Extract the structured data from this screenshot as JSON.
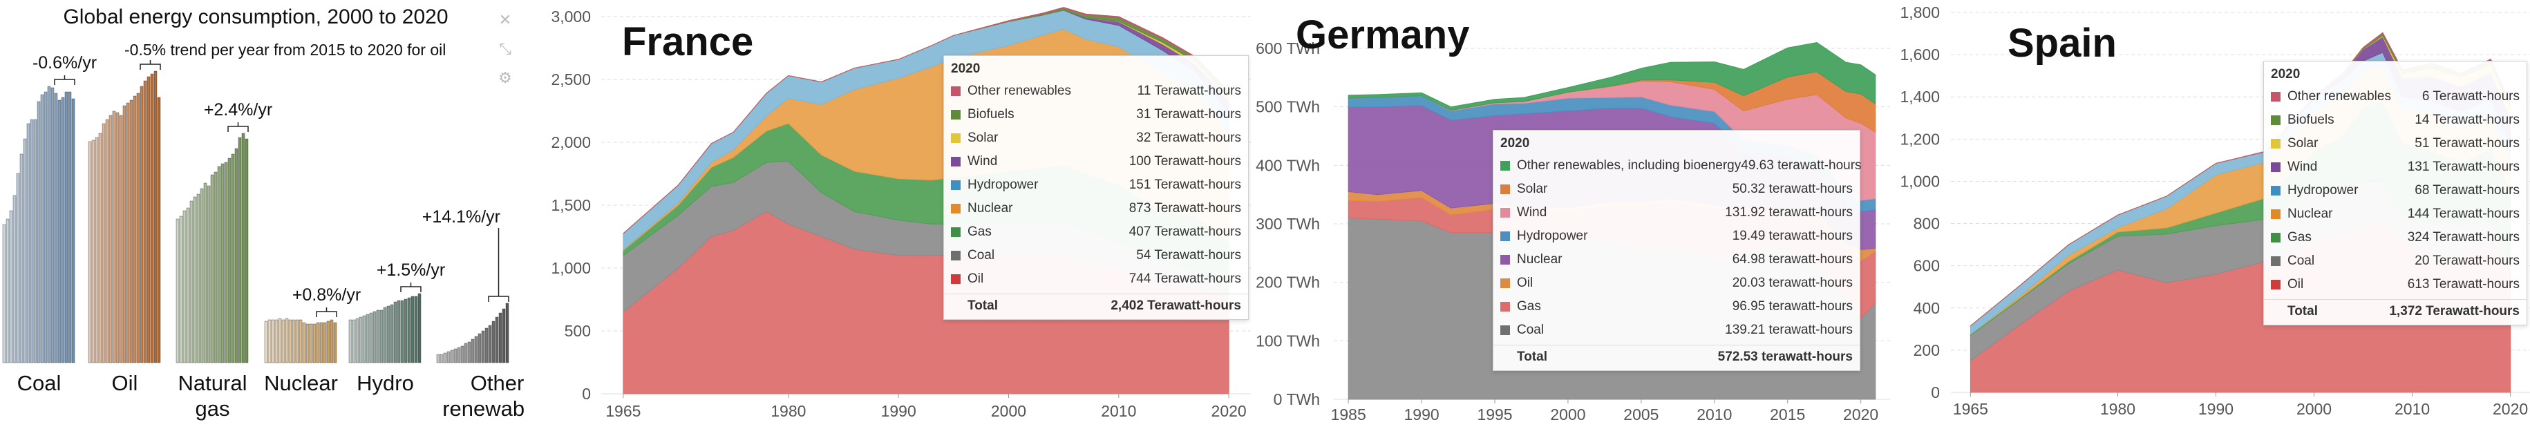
{
  "global": {
    "title": "Global energy consumption, 2000 to 2020",
    "icons": [
      "close-icon",
      "shrink-icon",
      "settings-icon"
    ],
    "categories": [
      {
        "name": "Coal",
        "label_lines": [
          "Coal"
        ],
        "color": "#6f8fb0",
        "trend": "-0.6%/yr",
        "values": [
          100,
          104,
          110,
          121,
          137,
          151,
          162,
          173,
          176,
          176,
          189,
          194,
          196,
          200,
          199,
          195,
          190,
          192,
          196,
          196,
          191
        ]
      },
      {
        "name": "Oil",
        "label_lines": [
          "Oil"
        ],
        "color": "#b5652a",
        "trend": "-0.5% trend per year from 2015 to 2020 for oil",
        "values": [
          160,
          161,
          163,
          166,
          173,
          176,
          179,
          182,
          181,
          179,
          186,
          188,
          190,
          193,
          195,
          200,
          204,
          207,
          209,
          211,
          192
        ]
      },
      {
        "name": "Natural gas",
        "label_lines": [
          "Natural",
          "gas"
        ],
        "color": "#6e8e52",
        "trend": "+2.4%/yr",
        "values": [
          104,
          106,
          110,
          112,
          117,
          120,
          122,
          126,
          130,
          128,
          136,
          138,
          142,
          144,
          145,
          148,
          151,
          155,
          163,
          166,
          162
        ]
      },
      {
        "name": "Nuclear",
        "label_lines": [
          "Nuclear"
        ],
        "color": "#c49a5a",
        "trend": "+0.8%/yr",
        "values": [
          30,
          31,
          31,
          31,
          32,
          31,
          32,
          31,
          31,
          31,
          31,
          29,
          28,
          28,
          28,
          29,
          29,
          29,
          30,
          31,
          29
        ]
      },
      {
        "name": "Hydro",
        "label_lines": [
          "Hydro"
        ],
        "color": "#4f6f62",
        "trend": "+1.5%/yr",
        "values": [
          31,
          31,
          32,
          33,
          34,
          35,
          36,
          37,
          38,
          38,
          40,
          41,
          42,
          44,
          45,
          45,
          46,
          47,
          48,
          48,
          50
        ]
      },
      {
        "name": "Other renewables",
        "label_lines": [
          "Other",
          "renewables"
        ],
        "color": "#555555",
        "trend": "+14.1%/yr",
        "values": [
          6,
          6,
          7,
          8,
          9,
          10,
          11,
          12,
          14,
          15,
          17,
          19,
          21,
          23,
          25,
          27,
          30,
          33,
          36,
          39,
          43
        ]
      }
    ]
  },
  "chart_data": [
    {
      "type": "area",
      "title": "France",
      "x": [
        1965,
        1970,
        1973,
        1975,
        1978,
        1980,
        1983,
        1986,
        1990,
        1993,
        1995,
        2000,
        2003,
        2005,
        2007,
        2010,
        2014,
        2017,
        2020
      ],
      "ylim": [
        0,
        3000
      ],
      "yticks": [
        "0",
        "500",
        "1,000",
        "1,500",
        "2,000",
        "2,500",
        "3,000"
      ],
      "xticks": [
        "1965",
        "1980",
        "1990",
        "2000",
        "2010",
        "2020"
      ],
      "series": [
        {
          "name": "Oil",
          "color": "#dd6b6b",
          "values": [
            650,
            1000,
            1250,
            1300,
            1450,
            1350,
            1250,
            1150,
            1100,
            1100,
            1100,
            1100,
            1100,
            1100,
            1050,
            1000,
            900,
            850,
            744
          ]
        },
        {
          "name": "Coal",
          "color": "#8c8c8c",
          "values": [
            450,
            420,
            400,
            380,
            390,
            500,
            350,
            300,
            280,
            250,
            250,
            250,
            250,
            260,
            250,
            200,
            150,
            130,
            54
          ]
        },
        {
          "name": "Gas",
          "color": "#4f9f55",
          "values": [
            40,
            80,
            150,
            200,
            250,
            300,
            300,
            320,
            330,
            350,
            370,
            420,
            450,
            460,
            450,
            460,
            400,
            430,
            407
          ]
        },
        {
          "name": "Nuclear",
          "color": "#e8a04a",
          "values": [
            5,
            20,
            40,
            60,
            120,
            200,
            400,
            650,
            800,
            900,
            950,
            1000,
            1050,
            1080,
            1070,
            1100,
            1100,
            1000,
            873
          ]
        },
        {
          "name": "Hydropower",
          "color": "#82b7d6",
          "values": [
            130,
            140,
            150,
            140,
            180,
            180,
            180,
            170,
            150,
            170,
            180,
            190,
            160,
            150,
            160,
            170,
            180,
            150,
            151
          ]
        },
        {
          "name": "Wind",
          "color": "#7b4a99",
          "values": [
            0,
            0,
            0,
            0,
            0,
            0,
            0,
            0,
            0,
            0,
            0,
            0,
            2,
            3,
            10,
            30,
            50,
            60,
            100
          ]
        },
        {
          "name": "Solar",
          "color": "#e0c63a",
          "values": [
            0,
            0,
            0,
            0,
            0,
            0,
            0,
            0,
            0,
            0,
            0,
            0,
            0,
            0,
            0,
            3,
            15,
            20,
            32
          ]
        },
        {
          "name": "Biofuels",
          "color": "#5e8a3a",
          "values": [
            0,
            0,
            0,
            0,
            0,
            0,
            0,
            0,
            0,
            0,
            0,
            5,
            10,
            15,
            25,
            30,
            30,
            30,
            31
          ]
        },
        {
          "name": "Other renewables",
          "color": "#c4566b",
          "values": [
            0,
            0,
            0,
            0,
            0,
            0,
            0,
            0,
            0,
            0,
            0,
            3,
            4,
            5,
            6,
            7,
            8,
            9,
            11
          ]
        }
      ],
      "tooltip": {
        "year": "2020",
        "rows": [
          {
            "label": "Other renewables",
            "value": "11 Terawatt-hours",
            "color": "#c4566b"
          },
          {
            "label": "Biofuels",
            "value": "31 Terawatt-hours",
            "color": "#5e8a3a"
          },
          {
            "label": "Solar",
            "value": "32 Terawatt-hours",
            "color": "#e0c63a"
          },
          {
            "label": "Wind",
            "value": "100 Terawatt-hours",
            "color": "#7b4a99"
          },
          {
            "label": "Hydropower",
            "value": "151 Terawatt-hours",
            "color": "#3f8fc0"
          },
          {
            "label": "Nuclear",
            "value": "873 Terawatt-hours",
            "color": "#e08a2a"
          },
          {
            "label": "Gas",
            "value": "407 Terawatt-hours",
            "color": "#3f8f45"
          },
          {
            "label": "Coal",
            "value": "54 Terawatt-hours",
            "color": "#6f6f6f"
          },
          {
            "label": "Oil",
            "value": "744 Terawatt-hours",
            "color": "#d03a3a"
          }
        ],
        "total_label": "Total",
        "total_value": "2,402 Terawatt-hours"
      }
    },
    {
      "type": "area",
      "title": "Germany",
      "x": [
        1985,
        1987,
        1990,
        1992,
        1995,
        1997,
        2000,
        2003,
        2005,
        2007,
        2010,
        2012,
        2015,
        2017,
        2019,
        2020,
        2021
      ],
      "ylim": [
        0,
        600
      ],
      "yticks": [
        "0 TWh",
        "100 TWh",
        "200 TWh",
        "300 TWh",
        "400 TWh",
        "500 TWh",
        "600 TWh"
      ],
      "xticks": [
        "1985",
        "1990",
        "1995",
        "2000",
        "2005",
        "2010",
        "2015",
        "2020"
      ],
      "series": [
        {
          "name": "Coal",
          "color": "#8c8c8c",
          "values": [
            310,
            308,
            305,
            285,
            285,
            270,
            270,
            270,
            260,
            260,
            240,
            250,
            260,
            230,
            170,
            139,
            165
          ]
        },
        {
          "name": "Gas",
          "color": "#dd6b6b",
          "values": [
            30,
            30,
            40,
            30,
            40,
            50,
            50,
            60,
            70,
            75,
            85,
            70,
            60,
            85,
            90,
            97,
            88
          ]
        },
        {
          "name": "Oil",
          "color": "#e08a40",
          "values": [
            15,
            12,
            12,
            12,
            10,
            8,
            8,
            8,
            8,
            8,
            7,
            7,
            6,
            6,
            5,
            20,
            5
          ]
        },
        {
          "name": "Nuclear",
          "color": "#8f5aa8",
          "values": [
            145,
            150,
            145,
            150,
            150,
            160,
            165,
            160,
            160,
            140,
            140,
            95,
            90,
            75,
            70,
            65,
            66
          ]
        },
        {
          "name": "Hydropower",
          "color": "#4a8fc0",
          "values": [
            15,
            16,
            17,
            16,
            20,
            18,
            22,
            18,
            19,
            20,
            20,
            21,
            18,
            20,
            20,
            19,
            19
          ]
        },
        {
          "name": "Wind",
          "color": "#e58a9a",
          "values": [
            0,
            0,
            0,
            1,
            2,
            3,
            10,
            19,
            27,
            40,
            38,
            50,
            79,
            105,
            126,
            132,
            114
          ]
        },
        {
          "name": "Solar",
          "color": "#e07d3a",
          "values": [
            0,
            0,
            0,
            0,
            0,
            0,
            0,
            1,
            2,
            3,
            12,
            26,
            38,
            39,
            45,
            50,
            48
          ]
        },
        {
          "name": "Other renewables, including bioenergy",
          "color": "#3fa05a",
          "values": [
            5,
            5,
            5,
            6,
            6,
            7,
            8,
            15,
            20,
            30,
            35,
            45,
            50,
            50,
            50,
            50,
            50
          ]
        }
      ],
      "tooltip": {
        "year": "2020",
        "rows": [
          {
            "label": "Other renewables, including bioenergy",
            "value": "49.63 terawatt-hours",
            "color": "#3fa05a"
          },
          {
            "label": "Solar",
            "value": "50.32 terawatt-hours",
            "color": "#e07d3a"
          },
          {
            "label": "Wind",
            "value": "131.92 terawatt-hours",
            "color": "#e58a9a"
          },
          {
            "label": "Hydropower",
            "value": "19.49 terawatt-hours",
            "color": "#4a8fc0"
          },
          {
            "label": "Nuclear",
            "value": "64.98 terawatt-hours",
            "color": "#8f5aa8"
          },
          {
            "label": "Oil",
            "value": "20.03 terawatt-hours",
            "color": "#e08a40"
          },
          {
            "label": "Gas",
            "value": "96.95 terawatt-hours",
            "color": "#dd6b6b"
          },
          {
            "label": "Coal",
            "value": "139.21 terawatt-hours",
            "color": "#6f6f6f"
          }
        ],
        "total_label": "Total",
        "total_value": "572.53 terawatt-hours"
      }
    },
    {
      "type": "area",
      "title": "Spain",
      "x": [
        1965,
        1970,
        1975,
        1980,
        1985,
        1990,
        1995,
        2000,
        2003,
        2005,
        2007,
        2009,
        2012,
        2015,
        2018,
        2020
      ],
      "ylim": [
        0,
        1800
      ],
      "yticks": [
        "0",
        "200",
        "400",
        "600",
        "800",
        "1,000",
        "1,200",
        "1,400",
        "1,600",
        "1,800"
      ],
      "xticks": [
        "1965",
        "1980",
        "1990",
        "2000",
        "2010",
        "2020"
      ],
      "series": [
        {
          "name": "Oil",
          "color": "#dd6b6b",
          "values": [
            150,
            320,
            480,
            580,
            520,
            560,
            620,
            720,
            760,
            790,
            800,
            720,
            640,
            640,
            700,
            613
          ]
        },
        {
          "name": "Coal",
          "color": "#8c8c8c",
          "values": [
            120,
            120,
            130,
            160,
            230,
            230,
            200,
            240,
            210,
            210,
            200,
            110,
            160,
            150,
            110,
            20
          ]
        },
        {
          "name": "Gas",
          "color": "#4f9f55",
          "values": [
            5,
            5,
            10,
            20,
            30,
            60,
            100,
            180,
            250,
            350,
            380,
            350,
            340,
            300,
            340,
            324
          ]
        },
        {
          "name": "Nuclear",
          "color": "#e8a04a",
          "values": [
            0,
            10,
            30,
            20,
            90,
            180,
            170,
            190,
            190,
            170,
            170,
            160,
            190,
            170,
            160,
            144
          ]
        },
        {
          "name": "Hydropower",
          "color": "#82b7d6",
          "values": [
            40,
            50,
            50,
            60,
            60,
            55,
            50,
            60,
            75,
            50,
            60,
            60,
            50,
            70,
            80,
            68
          ]
        },
        {
          "name": "Wind",
          "color": "#7b4a99",
          "values": [
            0,
            0,
            0,
            0,
            0,
            0,
            0,
            10,
            25,
            55,
            75,
            90,
            115,
            120,
            125,
            131
          ]
        },
        {
          "name": "Solar",
          "color": "#e0c63a",
          "values": [
            0,
            0,
            0,
            0,
            0,
            0,
            0,
            0,
            0,
            1,
            5,
            20,
            40,
            42,
            40,
            51
          ]
        },
        {
          "name": "Biofuels",
          "color": "#5e8a3a",
          "values": [
            0,
            0,
            0,
            0,
            0,
            0,
            0,
            0,
            3,
            5,
            10,
            14,
            20,
            14,
            18,
            14
          ]
        },
        {
          "name": "Other renewables",
          "color": "#c4566b",
          "values": [
            0,
            0,
            0,
            0,
            0,
            0,
            2,
            2,
            3,
            3,
            4,
            4,
            5,
            5,
            6,
            6
          ]
        }
      ],
      "tooltip": {
        "year": "2020",
        "rows": [
          {
            "label": "Other renewables",
            "value": "6 Terawatt-hours",
            "color": "#c4566b"
          },
          {
            "label": "Biofuels",
            "value": "14 Terawatt-hours",
            "color": "#5e8a3a"
          },
          {
            "label": "Solar",
            "value": "51 Terawatt-hours",
            "color": "#e0c63a"
          },
          {
            "label": "Wind",
            "value": "131 Terawatt-hours",
            "color": "#7b4a99"
          },
          {
            "label": "Hydropower",
            "value": "68 Terawatt-hours",
            "color": "#3f8fc0"
          },
          {
            "label": "Nuclear",
            "value": "144 Terawatt-hours",
            "color": "#e08a2a"
          },
          {
            "label": "Gas",
            "value": "324 Terawatt-hours",
            "color": "#3f8f45"
          },
          {
            "label": "Coal",
            "value": "20 Terawatt-hours",
            "color": "#6f6f6f"
          },
          {
            "label": "Oil",
            "value": "613 Terawatt-hours",
            "color": "#d03a3a"
          }
        ],
        "total_label": "Total",
        "total_value": "1,372 Terawatt-hours"
      }
    }
  ]
}
